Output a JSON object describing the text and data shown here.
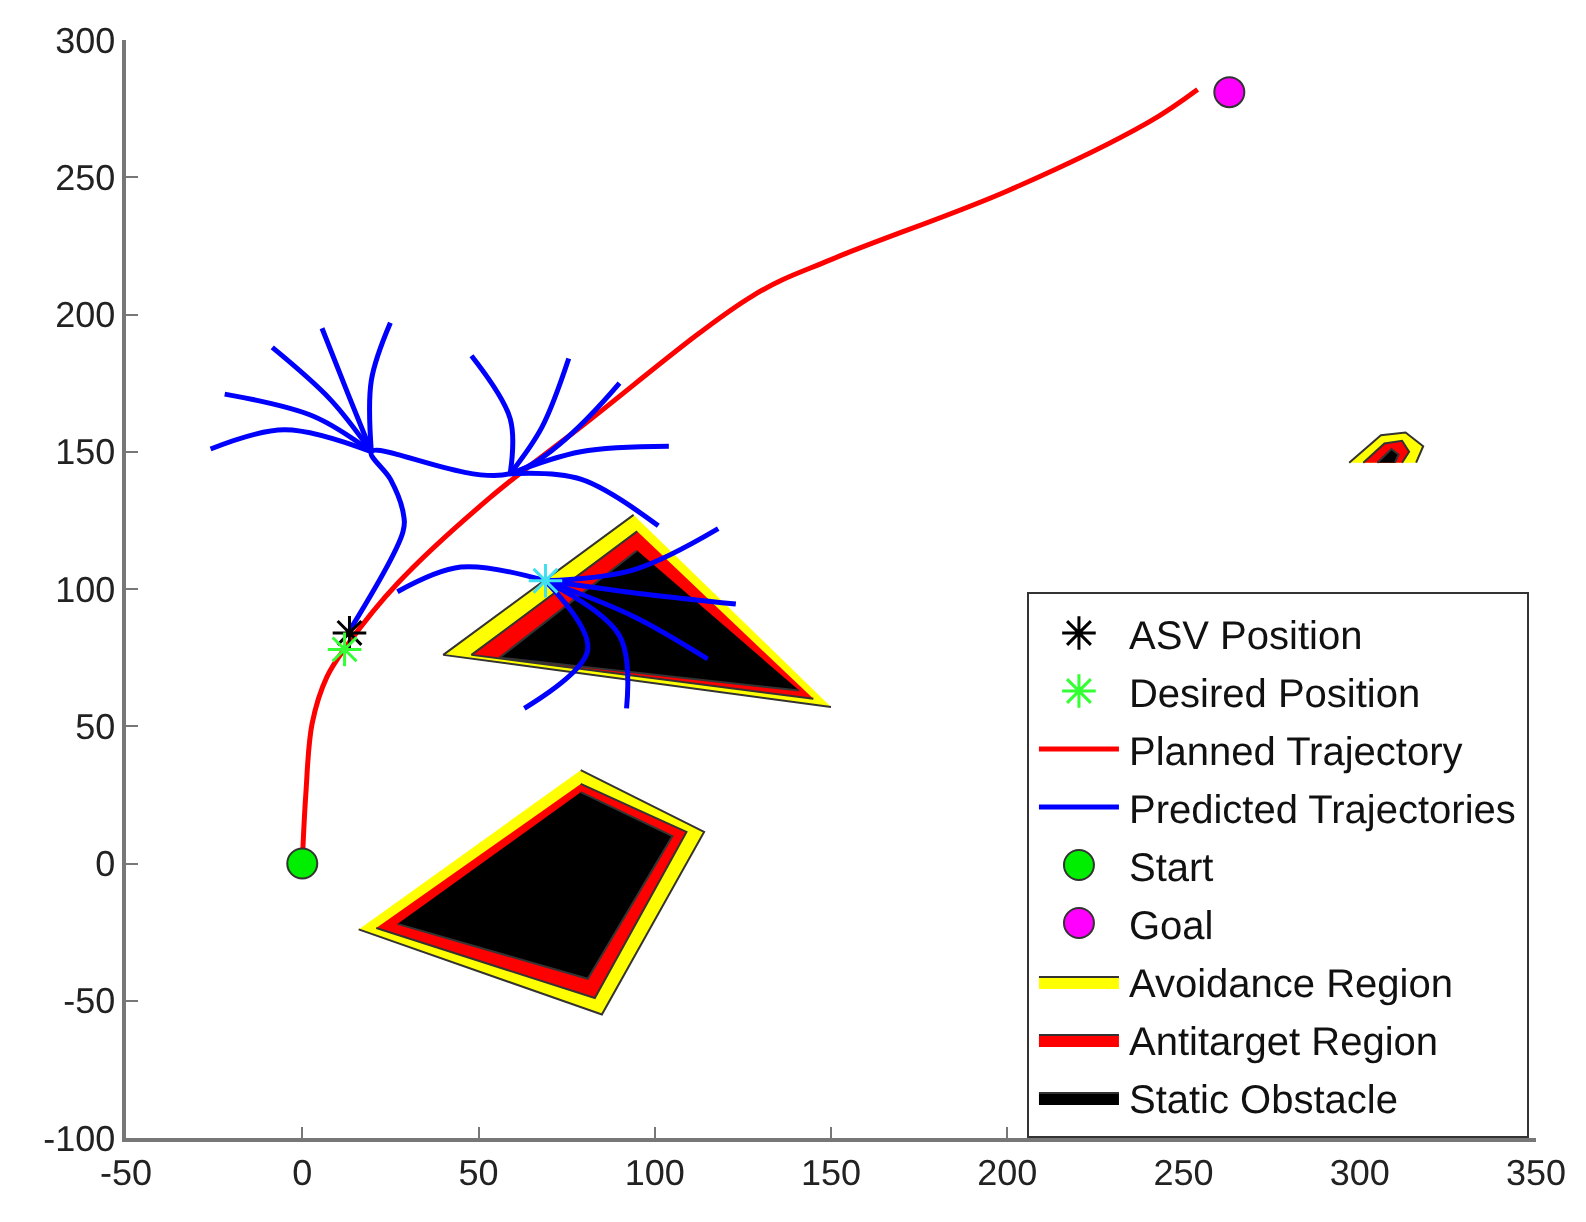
{
  "chart_data": {
    "type": "line",
    "xlim": [
      -50,
      350
    ],
    "ylim": [
      -100,
      300
    ],
    "xticks": [
      -50,
      0,
      50,
      100,
      150,
      200,
      250,
      300,
      350
    ],
    "yticks": [
      -100,
      -50,
      0,
      50,
      100,
      150,
      200,
      250,
      300
    ],
    "legend": "bottom right",
    "series": [
      {
        "name": "ASV Position",
        "type": "scatter",
        "color": "#000000",
        "marker": "cross",
        "x": [
          13.4
        ],
        "values": [
          84
        ]
      },
      {
        "name": "Desired Position",
        "type": "scatter",
        "color": "#33ff33",
        "marker": "cross",
        "x": [
          12
        ],
        "values": [
          78
        ]
      },
      {
        "name": "Planned Trajectory",
        "color": "#ff0000",
        "x": [
          0,
          1,
          2.8,
          7,
          13,
          27,
          53,
          79,
          128,
          150,
          200,
          240,
          254
        ],
        "values": [
          0,
          25,
          51,
          68,
          80,
          102,
          133,
          159,
          207,
          220,
          245,
          270,
          282
        ]
      },
      {
        "name": "Predicted Trajectories",
        "color": "#0000ff",
        "x": [
          13,
          28.6,
          28.6,
          25,
          19.6,
          59,
          90
        ],
        "values": [
          84,
          121,
          128,
          140,
          150,
          142,
          175
        ]
      },
      {
        "color": "#0000ff",
        "x": [
          19.6,
          -5,
          -26
        ],
        "values": [
          150,
          158,
          151
        ]
      },
      {
        "color": "#0000ff",
        "x": [
          19.6,
          3,
          -22
        ],
        "values": [
          150,
          163,
          171
        ]
      },
      {
        "color": "#0000ff",
        "x": [
          19.6,
          8,
          -8.5
        ],
        "values": [
          150,
          169,
          188
        ]
      },
      {
        "color": "#0000ff",
        "x": [
          19.6,
          13,
          5.6
        ],
        "values": [
          150,
          171,
          195
        ]
      },
      {
        "color": "#0000ff",
        "x": [
          19.6,
          19.6,
          25
        ],
        "values": [
          150,
          176,
          197
        ]
      },
      {
        "color": "#0000ff",
        "x": [
          59,
          59,
          48
        ],
        "values": [
          142,
          162,
          185
        ]
      },
      {
        "color": "#0000ff",
        "x": [
          59,
          68,
          75.6
        ],
        "values": [
          142,
          159,
          184
        ]
      },
      {
        "color": "#0000ff",
        "x": [
          59,
          79,
          104
        ],
        "values": [
          142,
          150,
          152
        ]
      },
      {
        "color": "#0000ff",
        "x": [
          59,
          79,
          101
        ],
        "values": [
          142,
          140,
          123
        ]
      },
      {
        "color": "#0000ff",
        "x": [
          27,
          45,
          69
        ],
        "values": [
          99,
          108,
          103
        ]
      },
      {
        "color": "#0000ff",
        "x": [
          69,
          94,
          118
        ],
        "values": [
          103,
          107,
          122
        ]
      },
      {
        "color": "#0000ff",
        "x": [
          69,
          98,
          123
        ],
        "values": [
          103,
          98,
          94.5
        ]
      },
      {
        "color": "#0000ff",
        "x": [
          69,
          94,
          115
        ],
        "values": [
          103,
          90,
          74.5
        ]
      },
      {
        "color": "#0000ff",
        "x": [
          69,
          90,
          92
        ],
        "values": [
          103,
          83,
          56.5
        ]
      },
      {
        "color": "#0000ff",
        "x": [
          69,
          81,
          63
        ],
        "values": [
          103,
          78,
          56.5
        ]
      },
      {
        "type": "scatter",
        "color": "#40e0f0",
        "marker": "cross",
        "x": [
          69
        ],
        "values": [
          103
        ]
      },
      {
        "name": "Start",
        "type": "scatter",
        "color": "#00ee00",
        "marker": "circle",
        "x": [
          0
        ],
        "values": [
          0
        ]
      },
      {
        "name": "Goal",
        "type": "scatter",
        "color": "#ff00ff",
        "marker": "circle",
        "x": [
          263
        ],
        "values": [
          281
        ]
      },
      {
        "name": "Avoidance Region",
        "type": "area",
        "color": "#ffff00",
        "x": [
          79,
          114,
          85,
          16
        ],
        "values": [
          34,
          11.5,
          -55,
          -24
        ]
      },
      {
        "type": "area",
        "color": "#ffff00",
        "x": [
          94,
          40,
          150
        ],
        "values": [
          127,
          76,
          57
        ]
      },
      {
        "type": "area",
        "color": "#ffff00",
        "x": [
          297,
          306,
          313,
          318,
          316
        ],
        "values": [
          146,
          156,
          157,
          152,
          146
        ]
      },
      {
        "name": "Antitarget Region",
        "type": "area",
        "color": "#ff0000",
        "x": [
          79,
          109,
          83,
          21
        ],
        "values": [
          29,
          11.5,
          -49,
          -23.5
        ]
      },
      {
        "type": "area",
        "color": "#ff0000",
        "x": [
          95,
          48,
          145
        ],
        "values": [
          121,
          76,
          60
        ]
      },
      {
        "type": "area",
        "color": "#ff0000",
        "x": [
          301,
          307,
          312,
          314,
          312
        ],
        "values": [
          146,
          153,
          154,
          150,
          146
        ]
      },
      {
        "name": "Static Obstacle",
        "type": "area",
        "color": "#000000",
        "x": [
          79,
          105,
          81,
          27
        ],
        "values": [
          26,
          10,
          -42,
          -22
        ]
      },
      {
        "type": "area",
        "color": "#000000",
        "x": [
          95,
          56,
          141
        ],
        "values": [
          114,
          75,
          63
        ]
      },
      {
        "type": "area",
        "color": "#000000",
        "x": [
          305,
          309,
          311,
          310
        ],
        "values": [
          146,
          151,
          149,
          146
        ]
      }
    ]
  }
}
